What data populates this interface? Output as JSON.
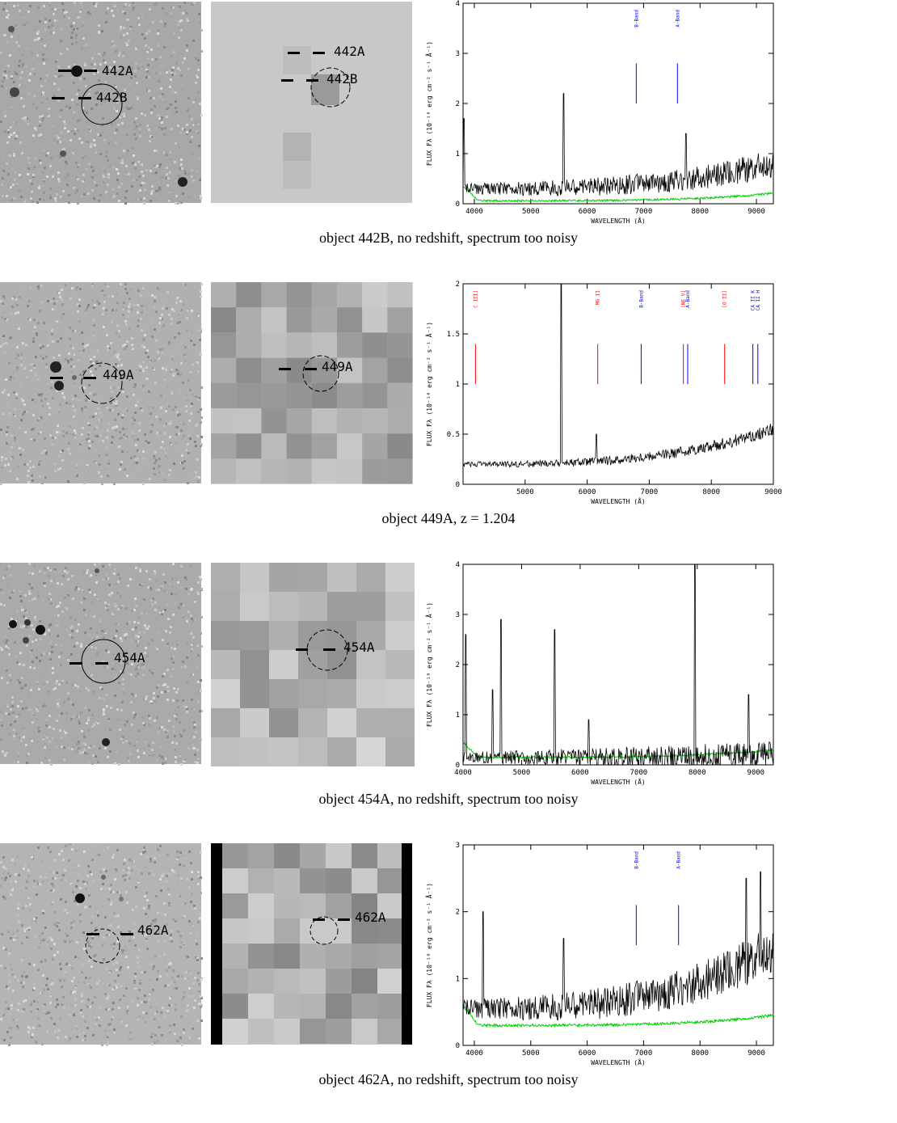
{
  "axis": {
    "xlabel": "WAVELENGTH (Å)",
    "ylabel_main": "FLUX F",
    "ylabel_sub": "λ",
    "ylabel_units": "(10⁻¹⁸ erg cm⁻² s⁻¹ Å⁻¹)"
  },
  "colors": {
    "flux": "#000000",
    "error": "#00cc00",
    "absorption": "#0000ff",
    "emission": "#ff0000"
  },
  "panels": [
    {
      "id": "442B",
      "caption": "object 442B, no redshift, spectrum too noisy",
      "labels": [
        "442A",
        "442B"
      ],
      "chart_data": {
        "type": "line",
        "xlim": [
          3800,
          9300
        ],
        "ylim": [
          0,
          4
        ],
        "xticks": [
          4000,
          5000,
          6000,
          7000,
          8000,
          9000
        ],
        "yticks": [
          1,
          2,
          3,
          4
        ],
        "lines": [
          {
            "label": "B-Band",
            "x": 6870,
            "type": "absorption"
          },
          {
            "label": "A-Band",
            "x": 7600,
            "type": "absorption"
          }
        ],
        "spikes": [
          [
            5580,
            2.2
          ],
          [
            7750,
            1.4
          ],
          [
            3820,
            1.7
          ]
        ],
        "flux_baseline": 0.3,
        "noise_amp": 0.35,
        "red_rise": 0.5,
        "error_baseline": 0.06
      }
    },
    {
      "id": "449A",
      "caption": "object 449A, z =  1.204",
      "labels": [
        "449A"
      ],
      "chart_data": {
        "type": "line",
        "xlim": [
          4000,
          9000
        ],
        "ylim": [
          0,
          2
        ],
        "xticks": [
          5000,
          6000,
          7000,
          8000,
          9000
        ],
        "yticks": [
          0.5,
          1,
          1.5,
          2
        ],
        "lines": [
          {
            "label": "C III]",
            "x": 4200,
            "type": "emission"
          },
          {
            "label": "MG II",
            "x": 6170,
            "type": "emission"
          },
          {
            "label": "B-Band",
            "x": 6870,
            "type": "absorption"
          },
          {
            "label": "[NE V]",
            "x": 7550,
            "type": "emission"
          },
          {
            "label": "A-Band",
            "x": 7620,
            "type": "absorption"
          },
          {
            "label": "[O II]",
            "x": 8215,
            "type": "emission"
          },
          {
            "label": "CA II K",
            "x": 8670,
            "type": "absorption"
          },
          {
            "label": "CA II H",
            "x": 8750,
            "type": "absorption"
          }
        ],
        "spikes": [
          [
            5577,
            2.0
          ],
          [
            6150,
            0.5
          ]
        ],
        "flux_baseline": 0.2,
        "noise_amp": 0.08,
        "red_rise": 0.35,
        "error_baseline": 0
      }
    },
    {
      "id": "454A",
      "caption": "object 454A, no redshift, spectrum too noisy",
      "labels": [
        "454A"
      ],
      "chart_data": {
        "type": "line",
        "xlim": [
          4000,
          9300
        ],
        "ylim": [
          0,
          4
        ],
        "xticks": [
          4000,
          5000,
          6000,
          7000,
          8000,
          9000
        ],
        "yticks": [
          1,
          2,
          3,
          4
        ],
        "lines": [],
        "spikes": [
          [
            4050,
            2.6
          ],
          [
            4650,
            2.9
          ],
          [
            5560,
            2.7
          ],
          [
            7960,
            4.0
          ],
          [
            4500,
            1.5
          ],
          [
            6150,
            0.9
          ],
          [
            8880,
            1.4
          ]
        ],
        "flux_baseline": 0.15,
        "noise_amp": 0.35,
        "red_rise": 0.05,
        "error_baseline": 0.15
      }
    },
    {
      "id": "462A",
      "caption": "object 462A, no redshift, spectrum too noisy",
      "labels": [
        "462A"
      ],
      "chart_data": {
        "type": "line",
        "xlim": [
          3800,
          9300
        ],
        "ylim": [
          0,
          3
        ],
        "xticks": [
          4000,
          5000,
          6000,
          7000,
          8000,
          9000
        ],
        "yticks": [
          1,
          2,
          3
        ],
        "lines": [
          {
            "label": "B-Band",
            "x": 6870,
            "type": "absorption"
          },
          {
            "label": "A-Band",
            "x": 7620,
            "type": "absorption"
          }
        ],
        "spikes": [
          [
            4150,
            2.0
          ],
          [
            5580,
            1.6
          ],
          [
            8820,
            2.5
          ],
          [
            9070,
            2.6
          ]
        ],
        "flux_baseline": 0.55,
        "noise_amp": 0.45,
        "red_rise": 0.9,
        "error_baseline": 0.3
      }
    }
  ]
}
